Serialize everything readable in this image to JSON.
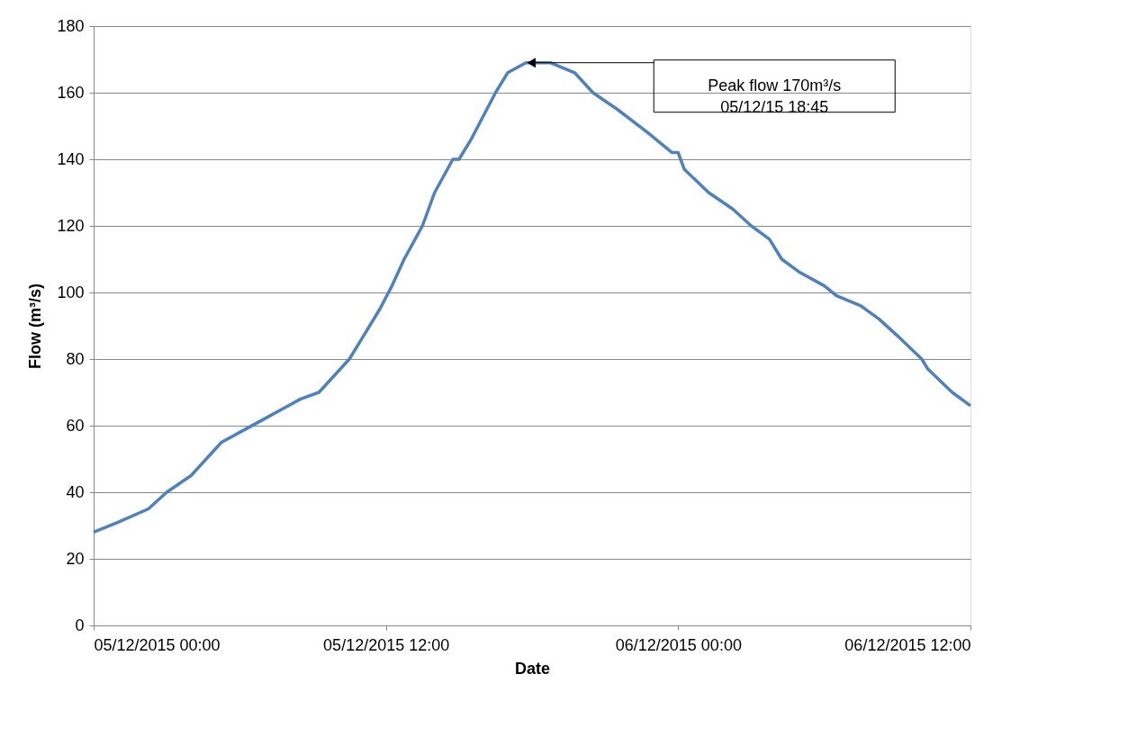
{
  "chart_data": {
    "type": "line",
    "xlabel": "Date",
    "ylabel": "Flow  (m³/s)",
    "x": [
      "2015-12-05T00:00",
      "2015-12-05T01:00",
      "2015-12-05T02:15",
      "2015-12-05T03:00",
      "2015-12-05T04:00",
      "2015-12-05T04:45",
      "2015-12-05T05:15",
      "2015-12-05T06:00",
      "2015-12-05T07:00",
      "2015-12-05T07:45",
      "2015-12-05T08:30",
      "2015-12-05T09:15",
      "2015-12-05T09:45",
      "2015-12-05T10:30",
      "2015-12-05T11:00",
      "2015-12-05T11:45",
      "2015-12-05T12:15",
      "2015-12-05T12:45",
      "2015-12-05T13:30",
      "2015-12-05T14:00",
      "2015-12-05T14:45",
      "2015-12-05T15:00",
      "2015-12-05T15:30",
      "2015-12-05T16:30",
      "2015-12-05T17:00",
      "2015-12-05T17:45",
      "2015-12-05T18:15",
      "2015-12-05T18:45",
      "2015-12-05T19:45",
      "2015-12-05T20:30",
      "2015-12-05T21:30",
      "2015-12-05T22:45",
      "2015-12-05T23:45",
      "2015-12-06T00:00",
      "2015-12-06T00:15",
      "2015-12-06T01:15",
      "2015-12-06T02:15",
      "2015-12-06T03:00",
      "2015-12-06T03:45",
      "2015-12-06T04:15",
      "2015-12-06T05:00",
      "2015-12-06T06:00",
      "2015-12-06T06:30",
      "2015-12-06T07:30",
      "2015-12-06T08:15",
      "2015-12-06T09:00",
      "2015-12-06T10:00",
      "2015-12-06T10:15",
      "2015-12-06T11:15",
      "2015-12-06T12:00"
    ],
    "series": [
      {
        "color": "#4f81bd",
        "values": [
          28,
          31,
          35,
          40,
          45,
          51,
          55,
          58,
          62,
          65,
          68,
          70,
          74,
          80,
          86,
          95,
          102,
          110,
          120,
          130,
          140,
          140,
          146,
          160,
          166,
          169,
          169,
          169,
          166,
          160,
          155,
          148,
          142,
          142,
          137,
          130,
          125,
          120,
          116,
          110,
          106,
          102,
          99,
          96,
          92,
          87,
          80,
          77,
          70,
          66
        ]
      }
    ],
    "xlim": [
      "2015-12-05T00:00",
      "2015-12-06T12:00"
    ],
    "xticks": [
      {
        "value": "2015-12-05T00:00",
        "label": "05/12/2015 00:00"
      },
      {
        "value": "2015-12-05T12:00",
        "label": "05/12/2015 12:00"
      },
      {
        "value": "2015-12-06T00:00",
        "label": "06/12/2015 00:00"
      },
      {
        "value": "2015-12-06T12:00",
        "label": "06/12/2015 12:00"
      }
    ],
    "ylim": [
      0,
      180
    ],
    "yticks": [
      0,
      20,
      40,
      60,
      80,
      100,
      120,
      140,
      160,
      180
    ],
    "grid": "y",
    "legend": false,
    "marker": "none",
    "line_style": "solid",
    "annotations": [
      "Peak flow 170m³/s\n05/12/15 18:45"
    ]
  }
}
